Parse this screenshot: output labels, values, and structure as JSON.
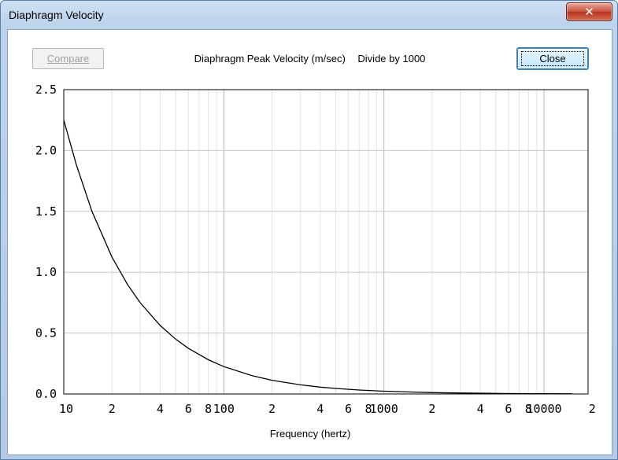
{
  "window": {
    "title": "Diaphragm Velocity",
    "close_glyph": "✕"
  },
  "toolbar": {
    "compare_label": "Compare",
    "close_label": "Close"
  },
  "header": {
    "title": "Diaphragm Peak Velocity (m/sec)",
    "subtitle": "Divide by 1000"
  },
  "chart_data": {
    "type": "line",
    "title": "Diaphragm Peak Velocity (m/sec)",
    "subtitle": "Divide by 1000",
    "xlabel": "Frequency (hertz)",
    "ylabel": "",
    "xscale": "log",
    "xlim": [
      10,
      20000
    ],
    "ylim": [
      0,
      2.5
    ],
    "grid": true,
    "y_ticks": [
      "0.0",
      "0.5",
      "1.0",
      "1.5",
      "2.0",
      "2.5"
    ],
    "x_ticks": [
      {
        "value": 10,
        "label": "10"
      },
      {
        "value": 20,
        "label": "2"
      },
      {
        "value": 40,
        "label": "4"
      },
      {
        "value": 60,
        "label": "6"
      },
      {
        "value": 80,
        "label": "8"
      },
      {
        "value": 100,
        "label": "100"
      },
      {
        "value": 200,
        "label": "2"
      },
      {
        "value": 400,
        "label": "4"
      },
      {
        "value": 600,
        "label": "6"
      },
      {
        "value": 800,
        "label": "8"
      },
      {
        "value": 1000,
        "label": "1000"
      },
      {
        "value": 2000,
        "label": "2"
      },
      {
        "value": 4000,
        "label": "4"
      },
      {
        "value": 6000,
        "label": "6"
      },
      {
        "value": 8000,
        "label": "8"
      },
      {
        "value": 10000,
        "label": "10000"
      },
      {
        "value": 20000,
        "label": "2"
      }
    ],
    "series": [
      {
        "color": "#000000",
        "x": [
          10,
          12,
          15,
          20,
          25,
          30,
          40,
          50,
          60,
          80,
          100,
          150,
          200,
          300,
          400,
          500,
          700,
          1000,
          2000,
          3000,
          5000,
          8000,
          10000,
          15000
        ],
        "y": [
          2.25,
          1.88,
          1.5,
          1.125,
          0.9,
          0.75,
          0.5625,
          0.45,
          0.375,
          0.281,
          0.225,
          0.15,
          0.1125,
          0.075,
          0.056,
          0.045,
          0.032,
          0.0225,
          0.0113,
          0.0075,
          0.0045,
          0.0028,
          0.00225,
          0.0015
        ]
      }
    ]
  },
  "colors": {
    "grid": "#c8c8c8",
    "axis": "#000000",
    "plot_bg": "#ffffff"
  }
}
